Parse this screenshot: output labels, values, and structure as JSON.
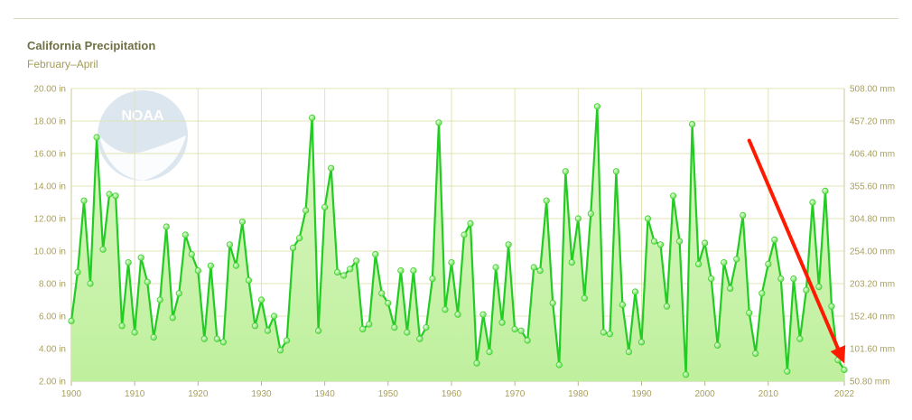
{
  "chart_data": {
    "type": "area",
    "title": "California Precipitation",
    "subtitle": "February–April",
    "logo_text": "NOAA",
    "x": [
      1900,
      1901,
      1902,
      1903,
      1904,
      1905,
      1906,
      1907,
      1908,
      1909,
      1910,
      1911,
      1912,
      1913,
      1914,
      1915,
      1916,
      1917,
      1918,
      1919,
      1920,
      1921,
      1922,
      1923,
      1924,
      1925,
      1926,
      1927,
      1928,
      1929,
      1930,
      1931,
      1932,
      1933,
      1934,
      1935,
      1936,
      1937,
      1938,
      1939,
      1940,
      1941,
      1942,
      1943,
      1944,
      1945,
      1946,
      1947,
      1948,
      1949,
      1950,
      1951,
      1952,
      1953,
      1954,
      1955,
      1956,
      1957,
      1958,
      1959,
      1960,
      1961,
      1962,
      1963,
      1964,
      1965,
      1966,
      1967,
      1968,
      1969,
      1970,
      1971,
      1972,
      1973,
      1974,
      1975,
      1976,
      1977,
      1978,
      1979,
      1980,
      1981,
      1982,
      1983,
      1984,
      1985,
      1986,
      1987,
      1988,
      1989,
      1990,
      1991,
      1992,
      1993,
      1994,
      1995,
      1996,
      1997,
      1998,
      1999,
      2000,
      2001,
      2002,
      2003,
      2004,
      2005,
      2006,
      2007,
      2008,
      2009,
      2010,
      2011,
      2012,
      2013,
      2014,
      2015,
      2016,
      2017,
      2018,
      2019,
      2020,
      2021,
      2022
    ],
    "values": [
      5.7,
      8.7,
      13.1,
      8.0,
      17.0,
      10.1,
      13.5,
      13.4,
      5.4,
      9.3,
      5.0,
      9.6,
      8.1,
      4.7,
      7.0,
      11.5,
      5.9,
      7.4,
      11.0,
      9.8,
      8.8,
      4.6,
      9.1,
      4.6,
      4.4,
      10.4,
      9.1,
      11.8,
      8.2,
      5.4,
      7.0,
      5.1,
      6.0,
      3.9,
      4.5,
      10.2,
      10.8,
      12.5,
      18.2,
      5.1,
      12.7,
      15.1,
      8.7,
      8.5,
      8.9,
      9.4,
      5.2,
      5.5,
      9.8,
      7.4,
      6.8,
      5.3,
      8.8,
      5.0,
      8.8,
      4.6,
      5.3,
      8.3,
      17.9,
      6.4,
      9.3,
      6.1,
      11.0,
      11.7,
      3.1,
      6.1,
      3.8,
      9.0,
      5.6,
      10.4,
      5.2,
      5.1,
      4.5,
      9.0,
      8.8,
      13.1,
      6.8,
      3.0,
      14.9,
      9.3,
      12.0,
      7.1,
      12.3,
      18.9,
      5.0,
      4.9,
      14.9,
      6.7,
      3.8,
      7.5,
      4.4,
      12.0,
      10.6,
      10.4,
      6.6,
      13.4,
      10.6,
      2.4,
      17.8,
      9.2,
      10.5,
      8.3,
      4.2,
      9.3,
      7.7,
      9.5,
      12.2,
      6.2,
      3.7,
      7.4,
      9.2,
      10.7,
      8.3,
      2.6,
      8.3,
      4.6,
      7.6,
      13.0,
      7.8,
      13.7,
      6.6,
      3.3,
      2.7
    ],
    "x_ticks": [
      "1900",
      "1910",
      "1920",
      "1930",
      "1940",
      "1950",
      "1960",
      "1970",
      "1980",
      "1990",
      "2000",
      "2010",
      "2022"
    ],
    "x_tick_values": [
      1900,
      1910,
      1920,
      1930,
      1940,
      1950,
      1960,
      1970,
      1980,
      1990,
      2000,
      2010,
      2022
    ],
    "y_left_ticks": [
      "2.00 in",
      "4.00 in",
      "6.00 in",
      "8.00 in",
      "10.00 in",
      "12.00 in",
      "14.00 in",
      "16.00 in",
      "18.00 in",
      "20.00 in"
    ],
    "y_right_ticks": [
      "50.80 mm",
      "101.60 mm",
      "152.40 mm",
      "203.20 mm",
      "254.00 mm",
      "304.80 mm",
      "355.60 mm",
      "406.40 mm",
      "457.20 mm",
      "508.00 mm"
    ],
    "ylim": [
      2,
      20
    ],
    "xlim": [
      1900,
      2022
    ],
    "grid": true,
    "annotation": {
      "type": "arrow",
      "color": "#ff1a00",
      "from": [
        2007,
        16.8
      ],
      "to": [
        2022,
        3.1
      ]
    },
    "colors": {
      "line": "#22cc22",
      "area": "#c6f2a8",
      "marker": "#8ef07a",
      "grid": "#e2e4b8",
      "axis_text": "#a89f5c"
    }
  }
}
